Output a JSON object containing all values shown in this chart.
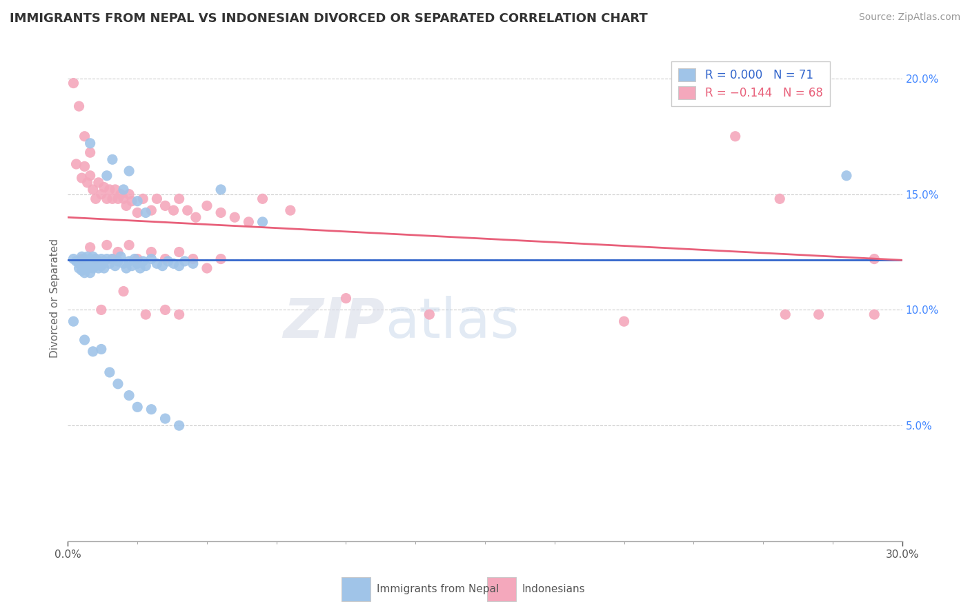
{
  "title": "IMMIGRANTS FROM NEPAL VS INDONESIAN DIVORCED OR SEPARATED CORRELATION CHART",
  "source": "Source: ZipAtlas.com",
  "ylabel": "Divorced or Separated",
  "xmin": 0.0,
  "xmax": 0.3,
  "ymin": 0.0,
  "ymax": 0.21,
  "x_ticks_major": [
    0.0,
    0.3
  ],
  "x_tick_labels": [
    "0.0%",
    "30.0%"
  ],
  "x_ticks_minor": [
    0.025,
    0.05,
    0.075,
    0.1,
    0.125,
    0.15,
    0.175,
    0.2,
    0.225,
    0.25,
    0.275
  ],
  "y_ticks_right": [
    0.05,
    0.1,
    0.15,
    0.2
  ],
  "y_tick_labels_right": [
    "5.0%",
    "10.0%",
    "15.0%",
    "20.0%"
  ],
  "blue_color": "#a0c4e8",
  "pink_color": "#f4a8bc",
  "blue_line_color": "#3366cc",
  "pink_line_color": "#e8607a",
  "watermark_zip": "ZIP",
  "watermark_atlas": "atlas",
  "blue_scatter": [
    [
      0.002,
      0.122
    ],
    [
      0.003,
      0.121
    ],
    [
      0.004,
      0.12
    ],
    [
      0.004,
      0.118
    ],
    [
      0.005,
      0.123
    ],
    [
      0.005,
      0.12
    ],
    [
      0.005,
      0.117
    ],
    [
      0.006,
      0.122
    ],
    [
      0.006,
      0.119
    ],
    [
      0.006,
      0.116
    ],
    [
      0.007,
      0.123
    ],
    [
      0.007,
      0.12
    ],
    [
      0.007,
      0.118
    ],
    [
      0.008,
      0.122
    ],
    [
      0.008,
      0.119
    ],
    [
      0.008,
      0.116
    ],
    [
      0.009,
      0.123
    ],
    [
      0.009,
      0.12
    ],
    [
      0.009,
      0.118
    ],
    [
      0.01,
      0.122
    ],
    [
      0.01,
      0.119
    ],
    [
      0.011,
      0.121
    ],
    [
      0.011,
      0.118
    ],
    [
      0.012,
      0.122
    ],
    [
      0.012,
      0.119
    ],
    [
      0.013,
      0.121
    ],
    [
      0.013,
      0.118
    ],
    [
      0.014,
      0.122
    ],
    [
      0.015,
      0.12
    ],
    [
      0.016,
      0.122
    ],
    [
      0.017,
      0.119
    ],
    [
      0.018,
      0.121
    ],
    [
      0.019,
      0.123
    ],
    [
      0.02,
      0.12
    ],
    [
      0.021,
      0.118
    ],
    [
      0.022,
      0.121
    ],
    [
      0.023,
      0.119
    ],
    [
      0.024,
      0.122
    ],
    [
      0.025,
      0.12
    ],
    [
      0.026,
      0.118
    ],
    [
      0.027,
      0.121
    ],
    [
      0.028,
      0.119
    ],
    [
      0.03,
      0.122
    ],
    [
      0.032,
      0.12
    ],
    [
      0.034,
      0.119
    ],
    [
      0.036,
      0.121
    ],
    [
      0.038,
      0.12
    ],
    [
      0.04,
      0.119
    ],
    [
      0.042,
      0.121
    ],
    [
      0.045,
      0.12
    ],
    [
      0.008,
      0.172
    ],
    [
      0.014,
      0.158
    ],
    [
      0.016,
      0.165
    ],
    [
      0.02,
      0.152
    ],
    [
      0.022,
      0.16
    ],
    [
      0.025,
      0.147
    ],
    [
      0.028,
      0.142
    ],
    [
      0.055,
      0.152
    ],
    [
      0.07,
      0.138
    ],
    [
      0.28,
      0.158
    ],
    [
      0.002,
      0.095
    ],
    [
      0.006,
      0.087
    ],
    [
      0.009,
      0.082
    ],
    [
      0.012,
      0.083
    ],
    [
      0.015,
      0.073
    ],
    [
      0.018,
      0.068
    ],
    [
      0.022,
      0.063
    ],
    [
      0.025,
      0.058
    ],
    [
      0.03,
      0.057
    ],
    [
      0.035,
      0.053
    ],
    [
      0.04,
      0.05
    ]
  ],
  "pink_scatter": [
    [
      0.002,
      0.198
    ],
    [
      0.004,
      0.188
    ],
    [
      0.006,
      0.175
    ],
    [
      0.008,
      0.168
    ],
    [
      0.003,
      0.163
    ],
    [
      0.005,
      0.157
    ],
    [
      0.006,
      0.162
    ],
    [
      0.007,
      0.155
    ],
    [
      0.008,
      0.158
    ],
    [
      0.009,
      0.152
    ],
    [
      0.01,
      0.148
    ],
    [
      0.011,
      0.155
    ],
    [
      0.012,
      0.15
    ],
    [
      0.013,
      0.153
    ],
    [
      0.014,
      0.148
    ],
    [
      0.015,
      0.152
    ],
    [
      0.016,
      0.148
    ],
    [
      0.017,
      0.152
    ],
    [
      0.018,
      0.148
    ],
    [
      0.019,
      0.15
    ],
    [
      0.02,
      0.148
    ],
    [
      0.021,
      0.145
    ],
    [
      0.022,
      0.15
    ],
    [
      0.023,
      0.147
    ],
    [
      0.025,
      0.142
    ],
    [
      0.027,
      0.148
    ],
    [
      0.03,
      0.143
    ],
    [
      0.032,
      0.148
    ],
    [
      0.035,
      0.145
    ],
    [
      0.038,
      0.143
    ],
    [
      0.04,
      0.148
    ],
    [
      0.043,
      0.143
    ],
    [
      0.046,
      0.14
    ],
    [
      0.05,
      0.145
    ],
    [
      0.055,
      0.142
    ],
    [
      0.06,
      0.14
    ],
    [
      0.065,
      0.138
    ],
    [
      0.07,
      0.148
    ],
    [
      0.08,
      0.143
    ],
    [
      0.005,
      0.122
    ],
    [
      0.008,
      0.127
    ],
    [
      0.01,
      0.122
    ],
    [
      0.014,
      0.128
    ],
    [
      0.016,
      0.122
    ],
    [
      0.018,
      0.125
    ],
    [
      0.022,
      0.128
    ],
    [
      0.025,
      0.122
    ],
    [
      0.03,
      0.125
    ],
    [
      0.035,
      0.122
    ],
    [
      0.04,
      0.125
    ],
    [
      0.045,
      0.122
    ],
    [
      0.05,
      0.118
    ],
    [
      0.055,
      0.122
    ],
    [
      0.24,
      0.175
    ],
    [
      0.256,
      0.148
    ],
    [
      0.258,
      0.098
    ],
    [
      0.29,
      0.122
    ],
    [
      0.27,
      0.098
    ],
    [
      0.29,
      0.098
    ],
    [
      0.012,
      0.1
    ],
    [
      0.02,
      0.108
    ],
    [
      0.028,
      0.098
    ],
    [
      0.035,
      0.1
    ],
    [
      0.04,
      0.098
    ],
    [
      0.1,
      0.105
    ],
    [
      0.13,
      0.098
    ],
    [
      0.2,
      0.095
    ]
  ],
  "blue_line_x": [
    0.0,
    0.3
  ],
  "blue_line_y": [
    0.1215,
    0.1215
  ],
  "pink_line_x": [
    0.0,
    0.3
  ],
  "pink_line_y": [
    0.14,
    0.1215
  ],
  "dashed_line_x": [
    0.0,
    0.3
  ],
  "dashed_line_y": [
    0.1215,
    0.1215
  ]
}
